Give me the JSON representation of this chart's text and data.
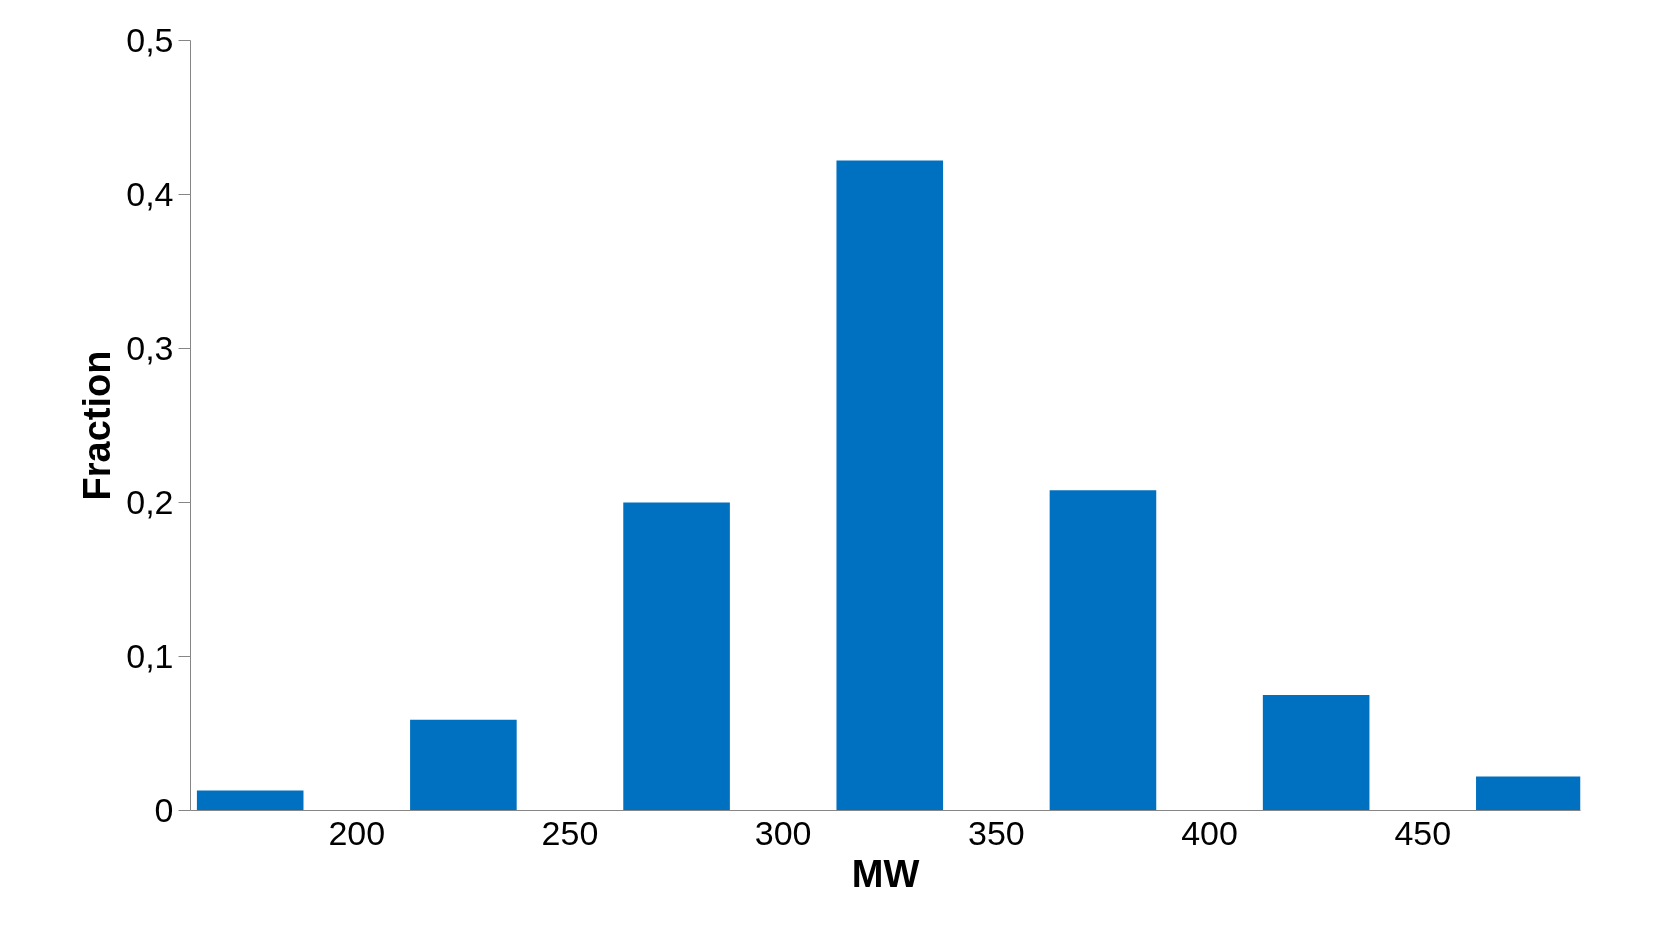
{
  "chart_data": {
    "type": "bar",
    "xlabel": "MW",
    "ylabel": "Fraction",
    "x": [
      175,
      225,
      275,
      325,
      375,
      425,
      475
    ],
    "series": [
      {
        "color": "#0070c0",
        "values": [
          0.013,
          0.059,
          0.2,
          0.422,
          0.208,
          0.075,
          0.022
        ]
      }
    ],
    "xlim": [
      161,
      487
    ],
    "xticks": [
      200,
      250,
      300,
      350,
      400,
      450
    ],
    "ylim": [
      0,
      0.5
    ],
    "yticks": [
      {
        "value": 0,
        "label": "0"
      },
      {
        "value": 0.1,
        "label": "0,1"
      },
      {
        "value": 0.2,
        "label": "0,2"
      },
      {
        "value": 0.3,
        "label": "0,3"
      },
      {
        "value": 0.4,
        "label": "0,4"
      },
      {
        "value": 0.5,
        "label": "0,5"
      }
    ]
  }
}
